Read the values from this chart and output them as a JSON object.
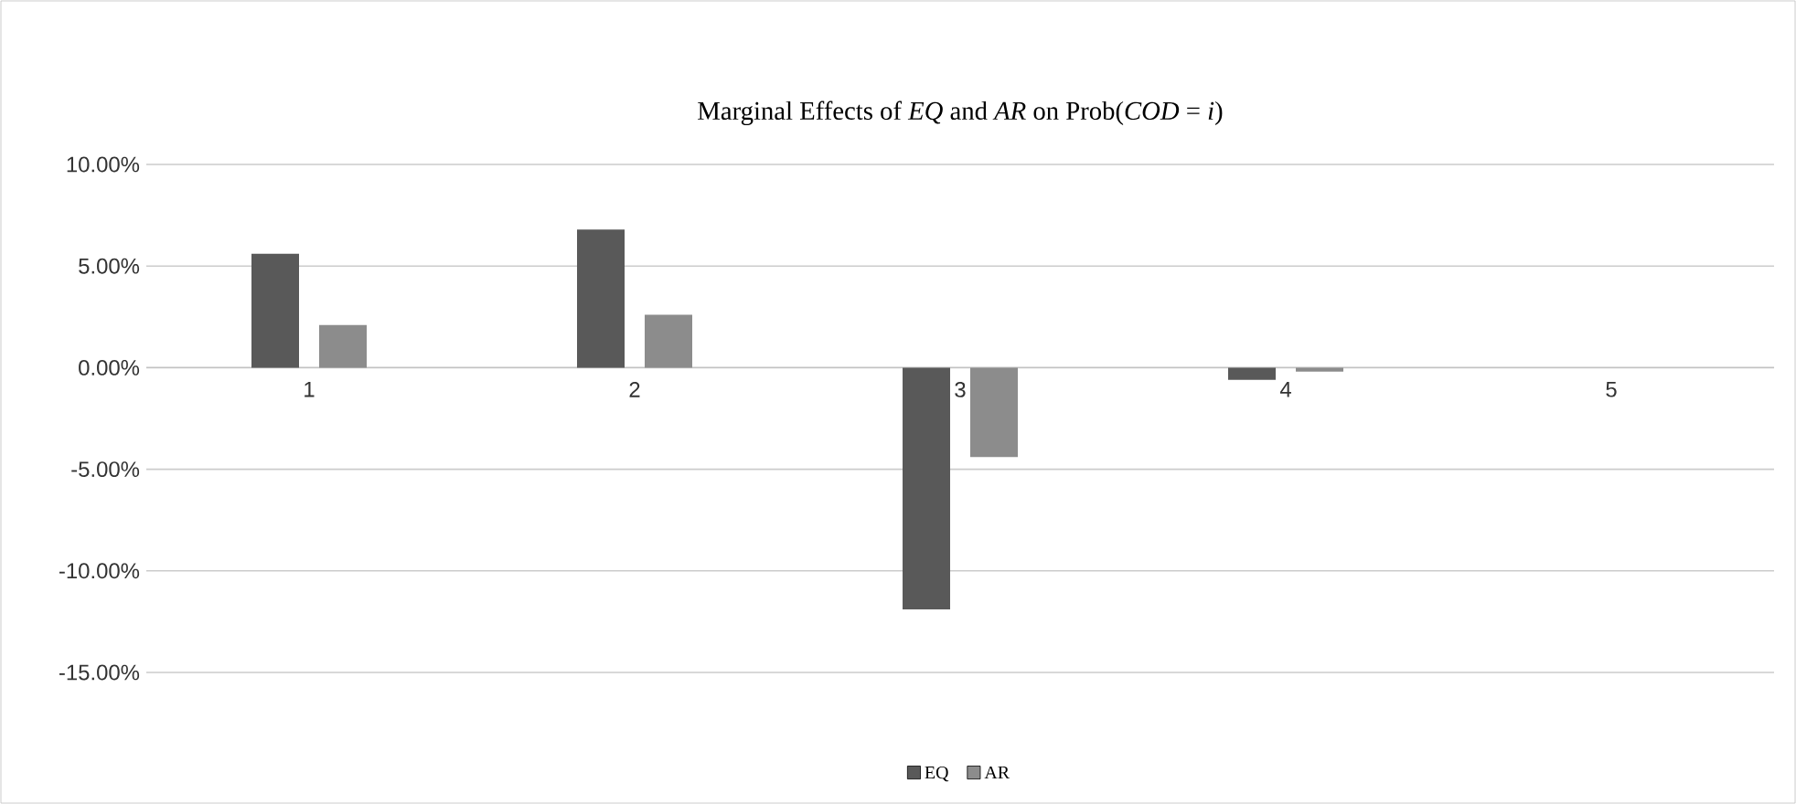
{
  "chart_data": {
    "type": "bar",
    "title": "Marginal Effects of *EQ* and *AR* on Prob(*COD* = *i*)",
    "categories": [
      "1",
      "2",
      "3",
      "4",
      "5"
    ],
    "series": [
      {
        "name": "EQ",
        "color": "#595959",
        "values": [
          5.6,
          6.8,
          -11.9,
          -0.6,
          0
        ]
      },
      {
        "name": "AR",
        "color": "#8c8c8c",
        "values": [
          2.1,
          2.6,
          -4.4,
          -0.2,
          0
        ]
      }
    ],
    "ylim": [
      -15,
      10
    ],
    "yticks": [
      {
        "value": -15,
        "label": "-15.00%"
      },
      {
        "value": -10,
        "label": "-10.00%"
      },
      {
        "value": -5,
        "label": "-5.00%"
      },
      {
        "value": 0,
        "label": "0.00%"
      },
      {
        "value": 5,
        "label": "5.00%"
      },
      {
        "value": 10,
        "label": "10.00%"
      }
    ],
    "grid": "y",
    "legend": "bottom"
  }
}
